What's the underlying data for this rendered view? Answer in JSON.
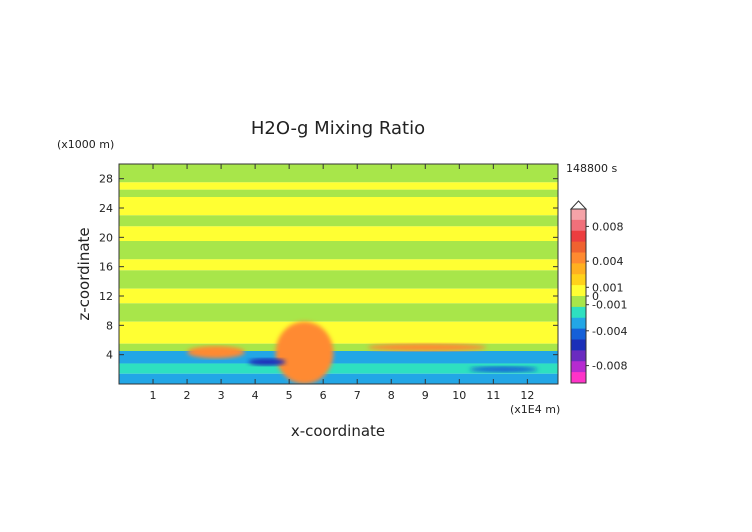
{
  "chart_data": {
    "type": "heatmap",
    "title": "H2O-g Mixing Ratio",
    "xlabel": "x-coordinate",
    "ylabel": "z-coordinate",
    "x_unit": "(x1E4 m)",
    "y_unit": "(x1000 m)",
    "time_label": "148800 s",
    "xlim": [
      0,
      12.9
    ],
    "ylim": [
      0,
      30
    ],
    "x_ticks": [
      "1",
      "2",
      "3",
      "4",
      "5",
      "6",
      "7",
      "8",
      "9",
      "10",
      "11",
      "12"
    ],
    "y_ticks": [
      "4",
      "8",
      "12",
      "16",
      "20",
      "24",
      "28"
    ],
    "colorbar": {
      "tick_labels": [
        "0.008",
        "0.004",
        "0.001",
        "0",
        "-0.001",
        "-0.004",
        "-0.008"
      ],
      "tick_values": [
        0.008,
        0.004,
        0.001,
        0,
        -0.001,
        -0.004,
        -0.008
      ],
      "range": [
        -0.01,
        0.01
      ],
      "levels": [
        {
          "value": 0.009,
          "color": "#f5a3a8"
        },
        {
          "value": 0.0075,
          "color": "#f0707a"
        },
        {
          "value": 0.006,
          "color": "#ec3d3f"
        },
        {
          "value": 0.0045,
          "color": "#f06230"
        },
        {
          "value": 0.003,
          "color": "#ff8a30"
        },
        {
          "value": 0.002,
          "color": "#ffb020"
        },
        {
          "value": 0.0012,
          "color": "#ffd21a"
        },
        {
          "value": 0.0005,
          "color": "#ffff33"
        },
        {
          "value": 0,
          "color": "#a8e64a"
        },
        {
          "value": -0.0006,
          "color": "#2ee0c0"
        },
        {
          "value": -0.0015,
          "color": "#22a6e6"
        },
        {
          "value": -0.003,
          "color": "#1560d8"
        },
        {
          "value": -0.0045,
          "color": "#1b2fb8"
        },
        {
          "value": -0.006,
          "color": "#6a2bc0"
        },
        {
          "value": -0.0075,
          "color": "#b62ad0"
        },
        {
          "value": -0.009,
          "color": "#ff33c8"
        }
      ]
    },
    "field_bands": [
      {
        "z_range": [
          27.5,
          30
        ],
        "color": "#a8e64a"
      },
      {
        "z_range": [
          26.5,
          27.5
        ],
        "color": "#ffff33"
      },
      {
        "z_range": [
          25.5,
          26.5
        ],
        "color": "#a8e64a"
      },
      {
        "z_range": [
          23,
          25.5
        ],
        "color": "#ffff33"
      },
      {
        "z_range": [
          21.5,
          23
        ],
        "color": "#a8e64a"
      },
      {
        "z_range": [
          19.5,
          21.5
        ],
        "color": "#ffff33"
      },
      {
        "z_range": [
          17,
          19.5
        ],
        "color": "#a8e64a"
      },
      {
        "z_range": [
          15.5,
          17
        ],
        "color": "#ffff33"
      },
      {
        "z_range": [
          13,
          15.5
        ],
        "color": "#a8e64a"
      },
      {
        "z_range": [
          11,
          13
        ],
        "color": "#ffff33"
      },
      {
        "z_range": [
          8.5,
          11
        ],
        "color": "#a8e64a"
      },
      {
        "z_range": [
          5.5,
          8.5
        ],
        "color": "#ffff33"
      },
      {
        "z_range": [
          4.5,
          5.5
        ],
        "color": "#a8e64a"
      },
      {
        "z_range": [
          2.8,
          4.5
        ],
        "color": "#22a6e6"
      },
      {
        "z_range": [
          1.4,
          2.8
        ],
        "color": "#2ee0c0"
      },
      {
        "z_range": [
          0,
          1.4
        ],
        "color": "#22a6e6"
      }
    ],
    "field_features": [
      {
        "name": "plume",
        "x_range": [
          4.6,
          6.3
        ],
        "z_range": [
          0,
          8.5
        ],
        "color": "#ff8a30"
      },
      {
        "name": "lower-left warm band",
        "x_range": [
          2.0,
          3.7
        ],
        "z_range": [
          3.5,
          5.2
        ],
        "color": "#ff8a30"
      },
      {
        "name": "upper-right warm band",
        "x_range": [
          7.3,
          10.8
        ],
        "z_range": [
          4.5,
          5.5
        ],
        "color": "#ff8a30"
      },
      {
        "name": "dark trough",
        "x_range": [
          3.8,
          4.9
        ],
        "z_range": [
          2.5,
          3.5
        ],
        "color": "#1b2fb8"
      },
      {
        "name": "right dark trough",
        "x_range": [
          10.3,
          12.3
        ],
        "z_range": [
          1.6,
          2.4
        ],
        "color": "#1560d8"
      }
    ]
  }
}
